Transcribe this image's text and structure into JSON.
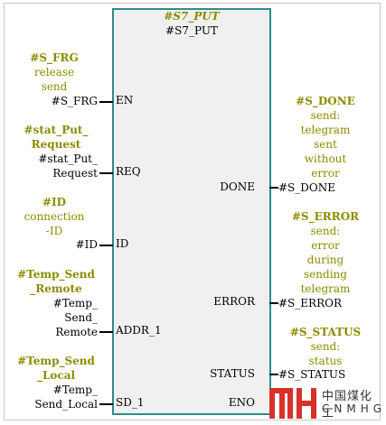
{
  "block": {
    "instance_name": "#S7_PUT",
    "type_name": "#S7_PUT"
  },
  "inputs": {
    "en": {
      "comment_name": "#S_FRG",
      "comment_l1": "release",
      "comment_l2": "send",
      "actual": "#S_FRG",
      "pin": "EN"
    },
    "req": {
      "comment_name_l1": "#stat_Put_",
      "comment_name_l2": "Request",
      "actual_l1": "#stat_Put_",
      "actual_l2": "Request",
      "pin": "REQ"
    },
    "id": {
      "comment_name": "#ID",
      "comment_l1": "connection",
      "comment_l2": "-ID",
      "actual": "#ID",
      "pin": "ID"
    },
    "addr1": {
      "comment_name_l1": "#Temp_Send",
      "comment_name_l2": "_Remote",
      "actual_l1": "#Temp_",
      "actual_l2": "Send_",
      "actual_l3": "Remote",
      "pin": "ADDR_1"
    },
    "sd1": {
      "comment_name_l1": "#Temp_Send",
      "comment_name_l2": "_Local",
      "actual_l1": "#Temp_",
      "actual_l2": "Send_Local",
      "pin": "SD_1"
    }
  },
  "outputs": {
    "done": {
      "comment_name": "#S_DONE",
      "comment_l1": "send:",
      "comment_l2": "telegram",
      "comment_l3": "sent",
      "comment_l4": "without",
      "comment_l5": "error",
      "actual": "#S_DONE",
      "pin": "DONE"
    },
    "error": {
      "comment_name": "#S_ERROR",
      "comment_l1": "send:",
      "comment_l2": "error",
      "comment_l3": "during",
      "comment_l4": "sending",
      "comment_l5": "telegram",
      "actual": "#S_ERROR",
      "pin": "ERROR"
    },
    "status": {
      "comment_name": "#S_STATUS",
      "comment_l1": "send:",
      "comment_l2": "status",
      "actual": "#S_STATUS",
      "pin": "STATUS"
    },
    "eno": {
      "pin": "ENO"
    }
  },
  "watermark": {
    "cn": "中国煤化工",
    "en": "CNMHG"
  },
  "colors": {
    "comment": "#8b8b00",
    "block_border": "#2e8b8b",
    "block_fill": "#f0f0f0",
    "logo_red": "#d9302a"
  }
}
